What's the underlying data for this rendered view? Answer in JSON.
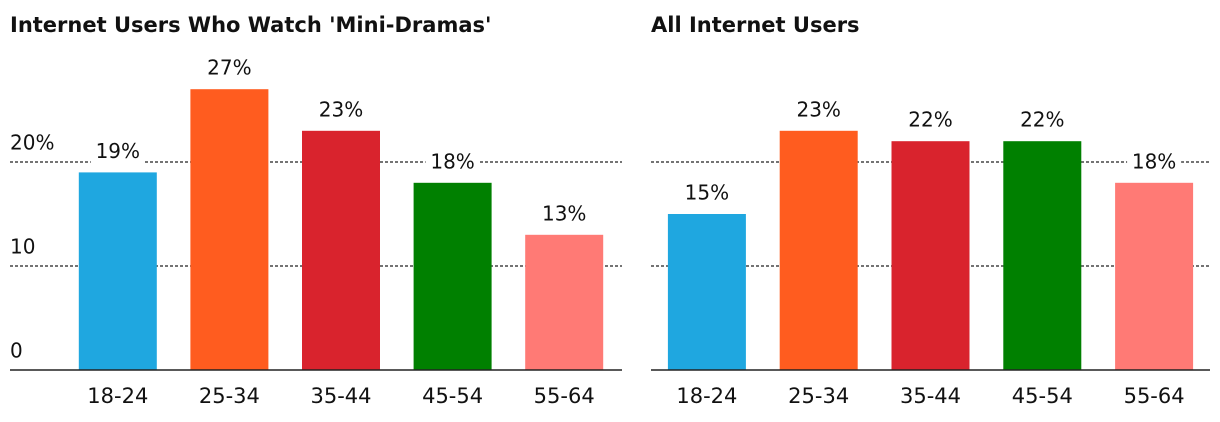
{
  "chart_data": [
    {
      "type": "bar",
      "title": "Internet Users Who Watch 'Mini-Dramas'",
      "categories": [
        "18-24",
        "25-34",
        "35-44",
        "45-54",
        "55-64"
      ],
      "values": [
        19,
        27,
        23,
        18,
        13
      ],
      "value_labels": [
        "19%",
        "27%",
        "23%",
        "18%",
        "13%"
      ],
      "colors": [
        "#1fa7e0",
        "#ff5c1f",
        "#d9232d",
        "#008000",
        "#ff7a75"
      ],
      "ylim": [
        0,
        30
      ],
      "yticks": [
        0,
        10,
        {
          "value": 20,
          "label": "20%"
        }
      ],
      "grid": true
    },
    {
      "type": "bar",
      "title": "All Internet Users",
      "categories": [
        "18-24",
        "25-34",
        "35-44",
        "45-54",
        "55-64"
      ],
      "values": [
        15,
        23,
        22,
        22,
        18
      ],
      "value_labels": [
        "15%",
        "23%",
        "22%",
        "22%",
        "18%"
      ],
      "colors": [
        "#1fa7e0",
        "#ff5c1f",
        "#d9232d",
        "#008000",
        "#ff7a75"
      ],
      "ylim": [
        0,
        30
      ],
      "gridlines": [
        10,
        20
      ],
      "grid": true
    }
  ]
}
